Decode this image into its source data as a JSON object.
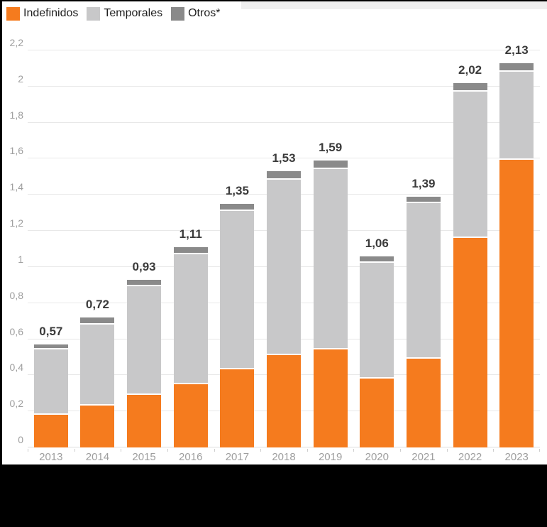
{
  "colors": {
    "indefinidos": "#f57b1e",
    "temporales": "#c8c8c9",
    "otros": "#8a8a8a",
    "gridline": "#e8e8e8",
    "axis_text": "#9e9e9e",
    "value_text": "#3b3b3b",
    "background": "#ffffff",
    "frame": "#000000"
  },
  "legend": {
    "items": [
      {
        "label": "Indefinidos",
        "color": "#f57b1e"
      },
      {
        "label": "Temporales",
        "color": "#c8c8c9"
      },
      {
        "label": "Otros*",
        "color": "#8a8a8a"
      }
    ]
  },
  "chart_data": {
    "type": "bar",
    "stacked": true,
    "title": "",
    "xlabel": "",
    "ylabel": "",
    "categories": [
      "2013",
      "2014",
      "2015",
      "2016",
      "2017",
      "2018",
      "2019",
      "2020",
      "2021",
      "2022",
      "2023"
    ],
    "series": [
      {
        "name": "Indefinidos",
        "color": "#f57b1e",
        "values": [
          0.19,
          0.24,
          0.3,
          0.36,
          0.44,
          0.52,
          0.55,
          0.39,
          0.5,
          1.17,
          1.6
        ]
      },
      {
        "name": "Temporales",
        "color": "#c8c8c9",
        "values": [
          0.36,
          0.45,
          0.6,
          0.72,
          0.88,
          0.97,
          1.0,
          0.64,
          0.86,
          0.81,
          0.49
        ]
      },
      {
        "name": "Otros*",
        "color": "#8a8a8a",
        "values": [
          0.02,
          0.03,
          0.03,
          0.03,
          0.03,
          0.04,
          0.04,
          0.03,
          0.03,
          0.04,
          0.04
        ]
      }
    ],
    "totals": [
      0.57,
      0.72,
      0.93,
      1.11,
      1.35,
      1.53,
      1.59,
      1.06,
      1.39,
      2.02,
      2.13
    ],
    "total_labels": [
      "0,57",
      "0,72",
      "0,93",
      "1,11",
      "1,35",
      "1,53",
      "1,59",
      "1,06",
      "1,39",
      "2,02",
      "2,13"
    ],
    "ylim": [
      0,
      2.2
    ],
    "yticks": [
      {
        "value": 0.0,
        "label": "0"
      },
      {
        "value": 0.2,
        "label": "0,2"
      },
      {
        "value": 0.4,
        "label": "0,4"
      },
      {
        "value": 0.6,
        "label": "0,6"
      },
      {
        "value": 0.8,
        "label": "0,8"
      },
      {
        "value": 1.0,
        "label": "1"
      },
      {
        "value": 1.2,
        "label": "1,2"
      },
      {
        "value": 1.4,
        "label": "1,4"
      },
      {
        "value": 1.6,
        "label": "1,6"
      },
      {
        "value": 1.8,
        "label": "1,8"
      },
      {
        "value": 2.0,
        "label": "2"
      },
      {
        "value": 2.2,
        "label": "2,2"
      }
    ],
    "grid": true,
    "legend_position": "top-left",
    "decimal_separator": ","
  }
}
